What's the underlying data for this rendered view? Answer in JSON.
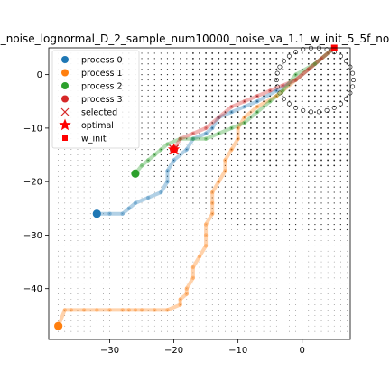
{
  "chart_data": {
    "type": "scatter",
    "title": "_noise_lognormal_D_2_sample_num10000_noise_va_1.1_w_init_5_5f_no",
    "xlabel": "",
    "ylabel": "",
    "xlim": [
      -39.5,
      7.5
    ],
    "ylim": [
      -49.5,
      5
    ],
    "x_ticks": [
      -30,
      -20,
      -10,
      0
    ],
    "y_ticks": [
      0,
      -10,
      -20,
      -30,
      -40
    ],
    "grid": false,
    "legend_position": "upper-left",
    "legend": [
      {
        "label": "process 0",
        "marker": "circle",
        "color": "#1f77b4"
      },
      {
        "label": "process 1",
        "marker": "circle",
        "color": "#ff7f0e"
      },
      {
        "label": "process 2",
        "marker": "circle",
        "color": "#2ca02c"
      },
      {
        "label": "process 3",
        "marker": "circle",
        "color": "#d62728"
      },
      {
        "label": "selected",
        "marker": "x",
        "color": "#d62728"
      },
      {
        "label": "optimal",
        "marker": "star",
        "color": "#ff0000"
      },
      {
        "label": "w_init",
        "marker": "square",
        "color": "#ff0000"
      }
    ],
    "series": [
      {
        "name": "process 0",
        "color": "#1f77b4",
        "x": [
          5,
          2,
          -1,
          -4,
          -7,
          -9,
          -11,
          -13,
          -14,
          -15,
          -17,
          -18,
          -20,
          -21,
          -21,
          -22,
          -24,
          -26,
          -27,
          -28,
          -30,
          -32
        ],
        "y": [
          5,
          2,
          -1,
          -3,
          -5,
          -6,
          -7,
          -8,
          -10,
          -11,
          -12,
          -14,
          -16,
          -18,
          -20,
          -22,
          -23,
          -24,
          -25,
          -26,
          -26,
          -26
        ]
      },
      {
        "name": "process 1",
        "color": "#ff7f0e",
        "x": [
          5,
          2,
          -1,
          -4,
          -7,
          -9,
          -10,
          -10,
          -11,
          -12,
          -12,
          -13,
          -14,
          -14,
          -14,
          -15,
          -15,
          -15,
          -16,
          -17,
          -17,
          -18,
          -18,
          -19,
          -19,
          -21,
          -23,
          -25,
          -26,
          -27,
          -28,
          -30,
          -32,
          -34,
          -36,
          -37,
          -38
        ],
        "y": [
          5,
          2,
          -1,
          -4,
          -6,
          -8,
          -10,
          -12,
          -14,
          -16,
          -18,
          -20,
          -22,
          -24,
          -26,
          -28,
          -30,
          -32,
          -34,
          -36,
          -38,
          -40,
          -41,
          -42,
          -43,
          -44,
          -44,
          -44,
          -44,
          -44,
          -44,
          -44,
          -44,
          -44,
          -44,
          -44,
          -47
        ]
      },
      {
        "name": "process 2",
        "color": "#2ca02c",
        "x": [
          5,
          2,
          -1,
          -3,
          -5,
          -7,
          -9,
          -11,
          -13,
          -15,
          -17,
          -19,
          -21,
          -22,
          -23,
          -24,
          -25,
          -26
        ],
        "y": [
          5,
          2,
          0,
          -3,
          -5,
          -7,
          -9,
          -10,
          -11,
          -12,
          -12,
          -12,
          -13,
          -14,
          -15,
          -16,
          -17,
          -18.5
        ]
      },
      {
        "name": "process 3",
        "color": "#d62728",
        "x": [
          5,
          3,
          1,
          -1,
          -3,
          -5,
          -7,
          -9,
          -11,
          -13,
          -15,
          -17,
          -19,
          -20
        ],
        "y": [
          5,
          3,
          1,
          -1,
          -2,
          -3,
          -4,
          -5,
          -6,
          -8,
          -10,
          -11,
          -12,
          -14
        ]
      }
    ],
    "selected": [
      {
        "x": -20,
        "y": -14
      }
    ],
    "optimal": [
      {
        "x": -20,
        "y": -14
      }
    ],
    "w_init": [
      {
        "x": 5,
        "y": 5
      }
    ]
  }
}
